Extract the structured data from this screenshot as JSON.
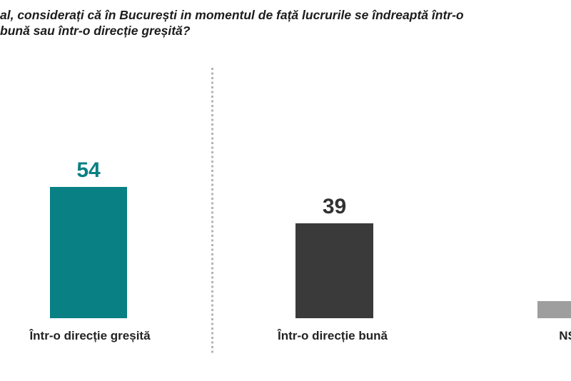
{
  "title": {
    "line1": "al, considerați că în București in momentul de față lucrurile se îndreaptă într-o",
    "line2": "bună sau într-o direcție greșită?"
  },
  "chart_data": {
    "type": "bar",
    "title": "al, considerați că în București in momentul de față lucrurile se îndreaptă într-o bună sau într-o direcție greșită?",
    "categories": [
      "Într-o direcție greșită",
      "Într-o direcție bună",
      "NS"
    ],
    "values": [
      54,
      39,
      7
    ],
    "value_labels": [
      "54",
      "39",
      ""
    ],
    "bar_colors": [
      "#088084",
      "#3a3a3a",
      "#9e9e9e"
    ],
    "value_label_colors": [
      "#0b7f84",
      "#323232",
      ""
    ],
    "ylim": [
      0,
      60
    ],
    "grid": "off",
    "legend": "none",
    "divider_color": "#b4b4b4"
  }
}
